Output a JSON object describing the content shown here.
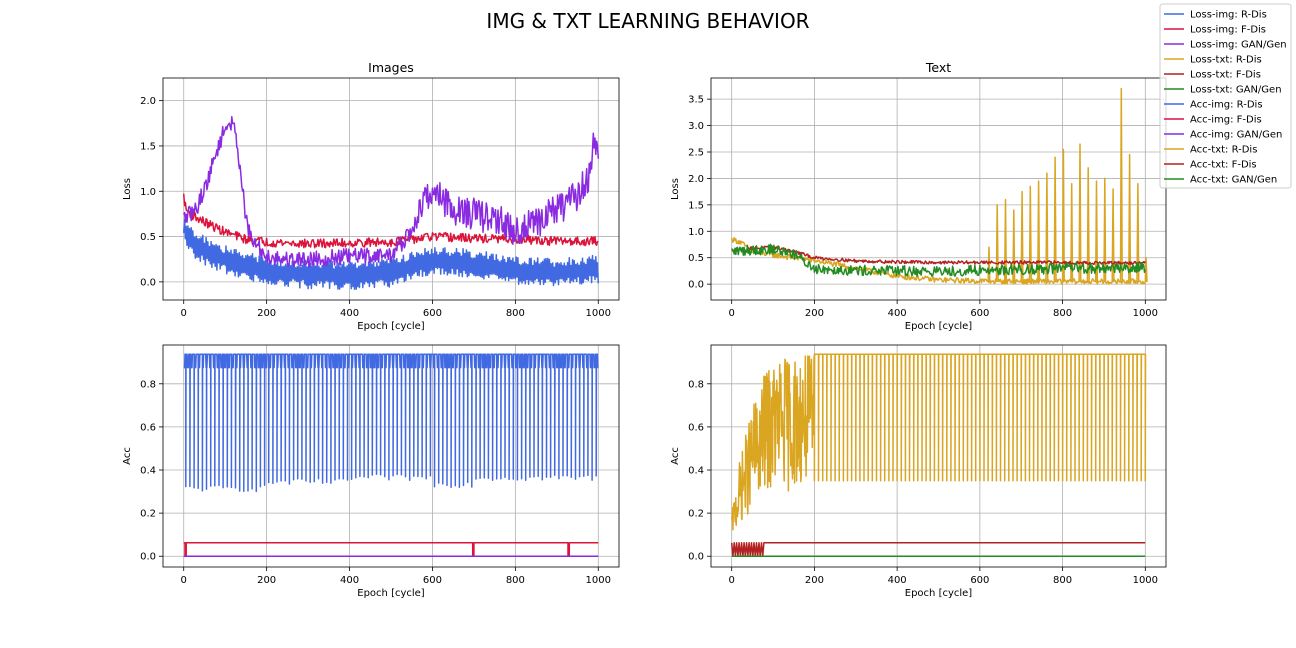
{
  "suptitle": "IMG & TXT LEARNING BEHAVIOR",
  "colors": {
    "royalblue": "#4169e1",
    "crimson": "#dc143c",
    "blueviolet": "#8a2be2",
    "goldenrod": "#daa520",
    "firebrick": "#b22222",
    "forestgreen": "#228b22"
  },
  "legend": {
    "placement": "top-right",
    "entries": [
      {
        "label": "Loss-img: R-Dis",
        "color": "#4169e1"
      },
      {
        "label": "Loss-img: F-Dis",
        "color": "#dc143c"
      },
      {
        "label": "Loss-img: GAN/Gen",
        "color": "#8a2be2"
      },
      {
        "label": "Loss-txt: R-Dis",
        "color": "#daa520"
      },
      {
        "label": "Loss-txt: F-Dis",
        "color": "#b22222"
      },
      {
        "label": "Loss-txt: GAN/Gen",
        "color": "#228b22"
      },
      {
        "label": "Acc-img: R-Dis",
        "color": "#4169e1"
      },
      {
        "label": "Acc-img: F-Dis",
        "color": "#dc143c"
      },
      {
        "label": "Acc-img: GAN/Gen",
        "color": "#8a2be2"
      },
      {
        "label": "Acc-txt: R-Dis",
        "color": "#daa520"
      },
      {
        "label": "Acc-txt: F-Dis",
        "color": "#b22222"
      },
      {
        "label": "Acc-txt: GAN/Gen",
        "color": "#228b22"
      }
    ]
  },
  "chart_data": [
    {
      "id": "loss_img",
      "type": "line",
      "title": "Images",
      "xlabel": "Epoch [cycle]",
      "ylabel": "Loss",
      "xlim": [
        -50,
        1050
      ],
      "ylim": [
        -0.2,
        2.25
      ],
      "xticks": [
        0,
        200,
        400,
        600,
        800,
        1000
      ],
      "yticks": [
        0.0,
        0.5,
        1.0,
        1.5,
        2.0
      ],
      "ytick_labels": [
        "0.0",
        "0.5",
        "1.0",
        "1.5",
        "2.0"
      ],
      "grid": true,
      "series": [
        {
          "name": "Loss-img: R-Dis",
          "color": "#4169e1",
          "noise": 0.12,
          "oscillate": true,
          "x": [
            0,
            10,
            30,
            60,
            100,
            150,
            200,
            300,
            400,
            500,
            550,
            600,
            650,
            700,
            800,
            900,
            1000
          ],
          "y": [
            0.62,
            0.48,
            0.4,
            0.32,
            0.25,
            0.18,
            0.12,
            0.08,
            0.07,
            0.1,
            0.18,
            0.24,
            0.22,
            0.2,
            0.12,
            0.1,
            0.14
          ]
        },
        {
          "name": "Loss-img: F-Dis",
          "color": "#dc143c",
          "noise": 0.05,
          "oscillate": false,
          "x": [
            0,
            5,
            20,
            50,
            100,
            150,
            200,
            300,
            400,
            500,
            600,
            700,
            800,
            900,
            1000
          ],
          "y": [
            0.95,
            0.8,
            0.74,
            0.66,
            0.55,
            0.47,
            0.44,
            0.42,
            0.43,
            0.44,
            0.5,
            0.48,
            0.47,
            0.45,
            0.45
          ]
        },
        {
          "name": "Loss-img: GAN/Gen",
          "color": "#8a2be2",
          "noise": 0.09,
          "oscillate": false,
          "x": [
            0,
            30,
            60,
            80,
            100,
            110,
            120,
            130,
            140,
            150,
            160,
            180,
            200,
            250,
            300,
            400,
            500,
            550,
            580,
            600,
            620,
            650,
            700,
            750,
            800,
            850,
            900,
            950,
            980,
            990,
            1000
          ],
          "y": [
            0.7,
            0.8,
            1.15,
            1.45,
            1.7,
            1.76,
            1.72,
            1.5,
            1.1,
            0.7,
            0.5,
            0.38,
            0.28,
            0.25,
            0.25,
            0.28,
            0.3,
            0.55,
            0.9,
            1.0,
            0.95,
            0.8,
            0.75,
            0.7,
            0.55,
            0.65,
            0.8,
            0.95,
            1.2,
            1.6,
            1.3
          ]
        }
      ]
    },
    {
      "id": "loss_txt",
      "type": "line",
      "title": "Text",
      "xlabel": "Epoch [cycle]",
      "ylabel": "Loss",
      "xlim": [
        -50,
        1050
      ],
      "ylim": [
        -0.3,
        3.9
      ],
      "xticks": [
        0,
        200,
        400,
        600,
        800,
        1000
      ],
      "yticks": [
        0.0,
        0.5,
        1.0,
        1.5,
        2.0,
        2.5,
        3.0,
        3.5
      ],
      "ytick_labels": [
        "0.0",
        "0.5",
        "1.0",
        "1.5",
        "2.0",
        "2.5",
        "3.0",
        "3.5"
      ],
      "grid": true,
      "series": [
        {
          "name": "Loss-txt: R-Dis",
          "color": "#daa520",
          "noise": 0.05,
          "oscillate": false,
          "x": [
            0,
            20,
            50,
            100,
            150,
            200,
            300,
            400,
            500,
            600,
            700,
            800,
            900,
            1000
          ],
          "y": [
            0.85,
            0.8,
            0.62,
            0.55,
            0.5,
            0.45,
            0.3,
            0.15,
            0.08,
            0.06,
            0.05,
            0.05,
            0.05,
            0.05
          ],
          "spikes": [
            [
              620,
              0.7
            ],
            [
              640,
              1.5
            ],
            [
              660,
              1.6
            ],
            [
              680,
              1.4
            ],
            [
              700,
              1.75
            ],
            [
              720,
              1.85
            ],
            [
              740,
              1.95
            ],
            [
              760,
              2.1
            ],
            [
              780,
              2.4
            ],
            [
              800,
              2.55
            ],
            [
              820,
              1.9
            ],
            [
              840,
              2.65
            ],
            [
              860,
              2.2
            ],
            [
              880,
              1.95
            ],
            [
              900,
              2.0
            ],
            [
              920,
              1.8
            ],
            [
              940,
              3.7
            ],
            [
              960,
              2.45
            ],
            [
              980,
              1.9
            ],
            [
              1000,
              0.5
            ]
          ]
        },
        {
          "name": "Loss-txt: F-Dis",
          "color": "#b22222",
          "noise": 0.03,
          "oscillate": false,
          "x": [
            0,
            50,
            100,
            150,
            200,
            300,
            400,
            500,
            600,
            700,
            800,
            900,
            1000
          ],
          "y": [
            0.62,
            0.68,
            0.7,
            0.62,
            0.5,
            0.44,
            0.42,
            0.41,
            0.41,
            0.41,
            0.41,
            0.4,
            0.4
          ]
        },
        {
          "name": "Loss-txt: GAN/Gen",
          "color": "#228b22",
          "noise": 0.1,
          "oscillate": false,
          "x": [
            0,
            50,
            100,
            150,
            180,
            200,
            250,
            300,
            400,
            500,
            600,
            700,
            800,
            900,
            1000
          ],
          "y": [
            0.62,
            0.65,
            0.66,
            0.58,
            0.4,
            0.3,
            0.28,
            0.26,
            0.25,
            0.24,
            0.26,
            0.28,
            0.3,
            0.3,
            0.32
          ]
        }
      ]
    },
    {
      "id": "acc_img",
      "type": "line",
      "title": "",
      "xlabel": "Epoch [cycle]",
      "ylabel": "Acc",
      "xlim": [
        -50,
        1050
      ],
      "ylim": [
        -0.05,
        0.98
      ],
      "xticks": [
        0,
        200,
        400,
        600,
        800,
        1000
      ],
      "yticks": [
        0.0,
        0.2,
        0.4,
        0.6,
        0.8
      ],
      "ytick_labels": [
        "0.0",
        "0.2",
        "0.4",
        "0.6",
        "0.8"
      ],
      "grid": true,
      "series": [
        {
          "name": "Acc-img: R-Dis",
          "color": "#4169e1",
          "type": "pulse",
          "top": 0.9375,
          "alt": 0.875,
          "period": 10,
          "dips": [
            [
              0,
              200,
              0.3
            ],
            [
              200,
              400,
              0.33
            ],
            [
              400,
              600,
              0.35
            ],
            [
              600,
              700,
              0.32
            ],
            [
              700,
              1000,
              0.35
            ]
          ]
        },
        {
          "name": "Acc-img: F-Dis",
          "color": "#dc143c",
          "type": "step",
          "level": 0.0625,
          "drops": [
            3,
            6,
            697,
            700,
            927,
            930
          ]
        },
        {
          "name": "Acc-img: GAN/Gen",
          "color": "#8a2be2",
          "type": "flat",
          "level": 0.0
        }
      ]
    },
    {
      "id": "acc_txt",
      "type": "line",
      "title": "",
      "xlabel": "Epoch [cycle]",
      "ylabel": "Acc",
      "xlim": [
        -50,
        1050
      ],
      "ylim": [
        -0.05,
        0.98
      ],
      "xticks": [
        0,
        200,
        400,
        600,
        800,
        1000
      ],
      "yticks": [
        0.0,
        0.2,
        0.4,
        0.6,
        0.8
      ],
      "ytick_labels": [
        "0.0",
        "0.2",
        "0.4",
        "0.6",
        "0.8"
      ],
      "grid": true,
      "series": [
        {
          "name": "Acc-txt: R-Dis",
          "color": "#daa520",
          "type": "ramp_pulse",
          "top": 0.9375,
          "period": 10,
          "x": [
            0,
            20,
            50,
            80,
            110,
            140,
            170,
            200,
            1000
          ],
          "low": [
            0.1,
            0.15,
            0.22,
            0.3,
            0.33,
            0.3,
            0.33,
            0.35,
            0.35
          ],
          "high": [
            0.2,
            0.45,
            0.7,
            0.85,
            0.92,
            0.9375,
            0.9375,
            0.9375,
            0.9375
          ]
        },
        {
          "name": "Acc-txt: F-Dis",
          "color": "#b22222",
          "type": "toggle",
          "level": 0.0625,
          "until": 80
        },
        {
          "name": "Acc-txt: GAN/Gen",
          "color": "#228b22",
          "type": "flat",
          "level": 0.0
        }
      ]
    }
  ]
}
